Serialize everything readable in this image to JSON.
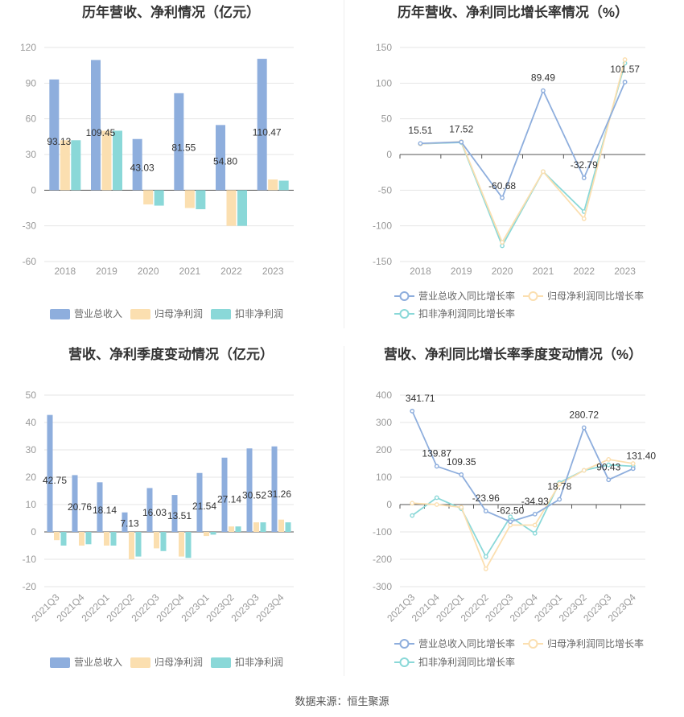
{
  "colors": {
    "revenue": "#8eaedd",
    "netprofit": "#fbdfb0",
    "deducted": "#8ad8d8",
    "grid": "#e6e6e6",
    "axis": "#bbbbbb"
  },
  "legend": {
    "bars": [
      "营业总收入",
      "归母净利润",
      "扣非净利润"
    ],
    "lines": [
      "营业总收入同比增长率",
      "归母净利润同比增长率",
      "扣非净利润同比增长率"
    ]
  },
  "source": "数据来源：恒生聚源",
  "chart_data": [
    {
      "type": "bar",
      "title": "历年营收、净利情况（亿元）",
      "categories": [
        "2018",
        "2019",
        "2020",
        "2021",
        "2022",
        "2023"
      ],
      "ylim": [
        -60,
        120
      ],
      "yticks": [
        -60,
        -30,
        0,
        30,
        60,
        90,
        120
      ],
      "series": [
        {
          "name": "营业总收入",
          "values": [
            93.13,
            109.45,
            43.03,
            81.55,
            54.8,
            110.47
          ]
        },
        {
          "name": "归母净利润",
          "values": [
            42,
            50,
            -12,
            -15,
            -30,
            9
          ]
        },
        {
          "name": "扣非净利润",
          "values": [
            42,
            50,
            -13,
            -16,
            -30,
            8
          ]
        }
      ],
      "labels": [
        "93.13",
        "109.45",
        "43.03",
        "81.55",
        "54.80",
        "110.47"
      ]
    },
    {
      "type": "line",
      "title": "历年营收、净利同比增长率情况（%）",
      "categories": [
        "2018",
        "2019",
        "2020",
        "2021",
        "2022",
        "2023"
      ],
      "ylim": [
        -150,
        150
      ],
      "yticks": [
        -150,
        -100,
        -50,
        0,
        50,
        100,
        150
      ],
      "series": [
        {
          "name": "营业总收入同比增长率",
          "values": [
            15.51,
            17.52,
            -60.68,
            89.49,
            -32.79,
            101.57
          ]
        },
        {
          "name": "归母净利润同比增长率",
          "values": [
            15,
            18,
            -123,
            -24,
            -90,
            133
          ]
        },
        {
          "name": "扣非净利润同比增长率",
          "values": [
            15,
            17,
            -128,
            -24,
            -80,
            128
          ]
        }
      ],
      "labels": [
        "15.51",
        "17.52",
        "-60.68",
        "89.49",
        "-32.79",
        "101.57"
      ]
    },
    {
      "type": "bar",
      "title": "营收、净利季度变动情况（亿元）",
      "categories": [
        "2021Q3",
        "2021Q4",
        "2022Q1",
        "2022Q2",
        "2022Q3",
        "2022Q4",
        "2023Q1",
        "2023Q2",
        "2023Q3",
        "2023Q4"
      ],
      "ylim": [
        -20,
        50
      ],
      "yticks": [
        -20,
        -10,
        0,
        10,
        20,
        30,
        40,
        50
      ],
      "series": [
        {
          "name": "营业总收入",
          "values": [
            42.75,
            20.76,
            18.14,
            7.13,
            16.03,
            13.51,
            21.54,
            27.14,
            30.52,
            31.26
          ]
        },
        {
          "name": "归母净利润",
          "values": [
            -3,
            -5,
            -5,
            -10,
            -6,
            -9,
            -1.5,
            2,
            3.5,
            4.5
          ]
        },
        {
          "name": "扣非净利润",
          "values": [
            -5,
            -4.5,
            -5,
            -9,
            -7,
            -9.5,
            -1,
            2,
            3.5,
            3.5
          ]
        }
      ],
      "labels": [
        "42.75",
        "20.76",
        "18.14",
        "7.13",
        "16.03",
        "13.51",
        "21.54",
        "27.14",
        "30.52",
        "31.26"
      ]
    },
    {
      "type": "line",
      "title": "营收、净利同比增长率季度变动情况（%）",
      "categories": [
        "2021Q3",
        "2021Q4",
        "2022Q1",
        "2022Q2",
        "2022Q3",
        "2022Q4",
        "2023Q1",
        "2023Q2",
        "2023Q3",
        "2023Q4"
      ],
      "ylim": [
        -300,
        400
      ],
      "yticks": [
        -300,
        -200,
        -100,
        0,
        100,
        200,
        300,
        400
      ],
      "series": [
        {
          "name": "营业总收入同比增长率",
          "values": [
            341.71,
            139.87,
            109.35,
            -23.96,
            -62.5,
            -34.93,
            18.78,
            280.72,
            90.43,
            131.4
          ]
        },
        {
          "name": "归母净利润同比增长率",
          "values": [
            5,
            0,
            -10,
            -235,
            -75,
            -75,
            75,
            125,
            165,
            150
          ]
        },
        {
          "name": "扣非净利润同比增长率",
          "values": [
            -40,
            25,
            -15,
            -190,
            -45,
            -105,
            80,
            125,
            145,
            140
          ]
        }
      ],
      "labels": [
        "341.71",
        "139.87",
        "109.35",
        "-23.96",
        "-62.50",
        "-34.93",
        "18.78",
        "280.72",
        "90.43",
        "131.40"
      ]
    }
  ]
}
